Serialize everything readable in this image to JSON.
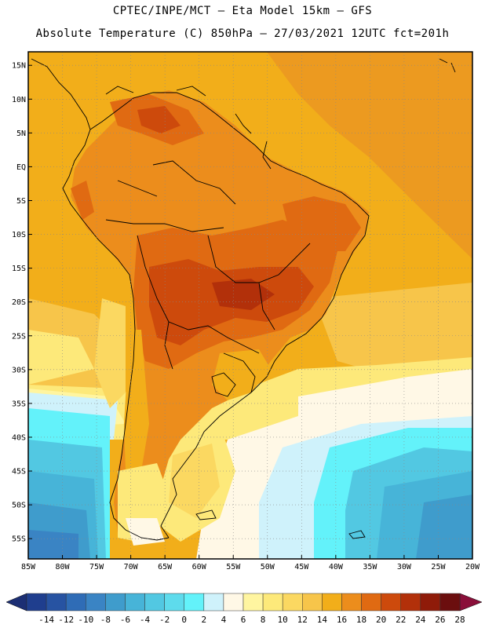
{
  "header": {
    "line1": "CPTEC/INPE/MCT –  Eta Model 15km – GFS",
    "line2": "Absolute Temperature (C) 850hPa – 27/03/2021 12UTC fct=201h"
  },
  "map": {
    "variable": "Absolute Temperature (C) 850hPa",
    "lat_labels": [
      "15N",
      "10N",
      "5N",
      "EQ",
      "5S",
      "10S",
      "15S",
      "20S",
      "25S",
      "30S",
      "35S",
      "40S",
      "45S",
      "50S",
      "55S"
    ],
    "lon_labels": [
      "85W",
      "80W",
      "75W",
      "70W",
      "65W",
      "60W",
      "55W",
      "50W",
      "45W",
      "40W",
      "35W",
      "30W",
      "25W",
      "20W"
    ],
    "lon_range": [
      -85,
      -20
    ],
    "lat_range": [
      -58,
      17
    ]
  },
  "colorbar": {
    "ticks": [
      "-14",
      "-12",
      "-10",
      "-8",
      "-6",
      "-4",
      "-2",
      "0",
      "2",
      "4",
      "6",
      "8",
      "10",
      "12",
      "14",
      "16",
      "18",
      "20",
      "22",
      "24",
      "26",
      "28"
    ],
    "colors": [
      "#1f3e8e",
      "#2753a2",
      "#2f6cb6",
      "#3a84c4",
      "#3f9ccc",
      "#47b4d8",
      "#52c8e2",
      "#5edbec",
      "#63f2fa",
      "#cff2fb",
      "#fff8e6",
      "#fff5a0",
      "#fde97a",
      "#fbd861",
      "#f7c54a",
      "#f2ae1a",
      "#ec8d1c",
      "#e06a12",
      "#cd4a0c",
      "#b2300a",
      "#8f1b09",
      "#6b0e0e"
    ],
    "low_end_color": "#1c2f74",
    "high_end_color": "#8a0f3a"
  }
}
